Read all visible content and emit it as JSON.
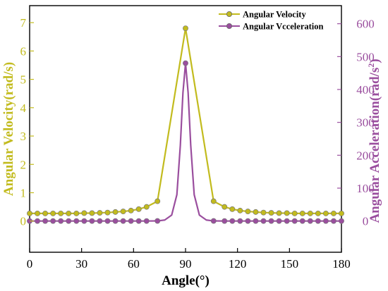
{
  "colors": {
    "velocity": "#c2bb1e",
    "acceleration": "#9a4e9e",
    "axis": "#000000",
    "background": "#ffffff"
  },
  "chart_data": {
    "type": "line",
    "xlabel": "Angle(°)",
    "ylabel_left": "Angular Velocity(rad/s)",
    "ylabel_right_base": "Angular Acceleration(rad/s",
    "ylabel_right_sup": "2",
    "ylabel_right_close": ")",
    "xlim": [
      0,
      180
    ],
    "ylim_left": [
      -1.1,
      7.6
    ],
    "ylim_right": [
      -95,
      655
    ],
    "x_ticks": [
      0,
      30,
      60,
      90,
      120,
      150,
      180
    ],
    "y_left_ticks": [
      0,
      1,
      2,
      3,
      4,
      5,
      6,
      7
    ],
    "y_right_ticks": [
      0,
      100,
      200,
      300,
      400,
      500,
      600
    ],
    "grid": false,
    "legend_position": "top-right",
    "series": [
      {
        "name": "Angular Velocity",
        "axis": "left",
        "x": [
          0,
          4.5,
          9,
          13.5,
          18,
          22.5,
          27,
          31.5,
          36,
          40.5,
          45,
          49.5,
          54,
          58.5,
          63,
          67.5,
          73.8,
          90,
          106.2,
          112.5,
          117,
          121.5,
          126,
          130.5,
          135,
          139.5,
          144,
          148.5,
          153,
          157.5,
          162,
          166.5,
          171,
          175.5,
          180
        ],
        "values": [
          0.27,
          0.27,
          0.27,
          0.27,
          0.27,
          0.27,
          0.27,
          0.28,
          0.28,
          0.29,
          0.3,
          0.32,
          0.34,
          0.37,
          0.42,
          0.5,
          0.7,
          6.8,
          0.7,
          0.5,
          0.42,
          0.37,
          0.34,
          0.32,
          0.3,
          0.29,
          0.28,
          0.28,
          0.27,
          0.27,
          0.27,
          0.27,
          0.27,
          0.27,
          0.27
        ],
        "marker_x": [
          0,
          4.5,
          9,
          13.5,
          18,
          22.5,
          27,
          31.5,
          36,
          40.5,
          45,
          49.5,
          54,
          58.5,
          63,
          67.5,
          73.8,
          90,
          106.2,
          112.5,
          117,
          121.5,
          126,
          130.5,
          135,
          139.5,
          144,
          148.5,
          153,
          157.5,
          162,
          166.5,
          171,
          175.5,
          180
        ]
      },
      {
        "name": "Angular Vcceleration",
        "axis": "right",
        "x": [
          0,
          4.5,
          9,
          13.5,
          18,
          22.5,
          27,
          31.5,
          36,
          40.5,
          45,
          49.5,
          54,
          58.5,
          63,
          67.5,
          73.8,
          78,
          82,
          85,
          87,
          88.5,
          90,
          91.5,
          93,
          95,
          98,
          102,
          106.2,
          112.5,
          117,
          121.5,
          126,
          130.5,
          135,
          139.5,
          144,
          148.5,
          153,
          157.5,
          162,
          166.5,
          171,
          175.5,
          180
        ],
        "values": [
          0,
          0,
          0,
          0,
          0,
          0,
          0,
          0,
          0,
          0,
          0,
          0,
          0,
          0,
          0,
          0,
          0.3,
          3,
          18,
          80,
          230,
          390,
          480,
          390,
          230,
          80,
          18,
          3,
          0.3,
          0,
          0,
          0,
          0,
          0,
          0,
          0,
          0,
          0,
          0,
          0,
          0,
          0,
          0,
          0,
          0
        ],
        "marker_x": [
          0,
          4.5,
          9,
          13.5,
          18,
          22.5,
          27,
          31.5,
          36,
          40.5,
          45,
          49.5,
          54,
          58.5,
          63,
          67.5,
          73.8,
          90,
          106.2,
          112.5,
          117,
          121.5,
          126,
          130.5,
          135,
          139.5,
          144,
          148.5,
          153,
          157.5,
          162,
          166.5,
          171,
          175.5,
          180
        ]
      }
    ]
  }
}
